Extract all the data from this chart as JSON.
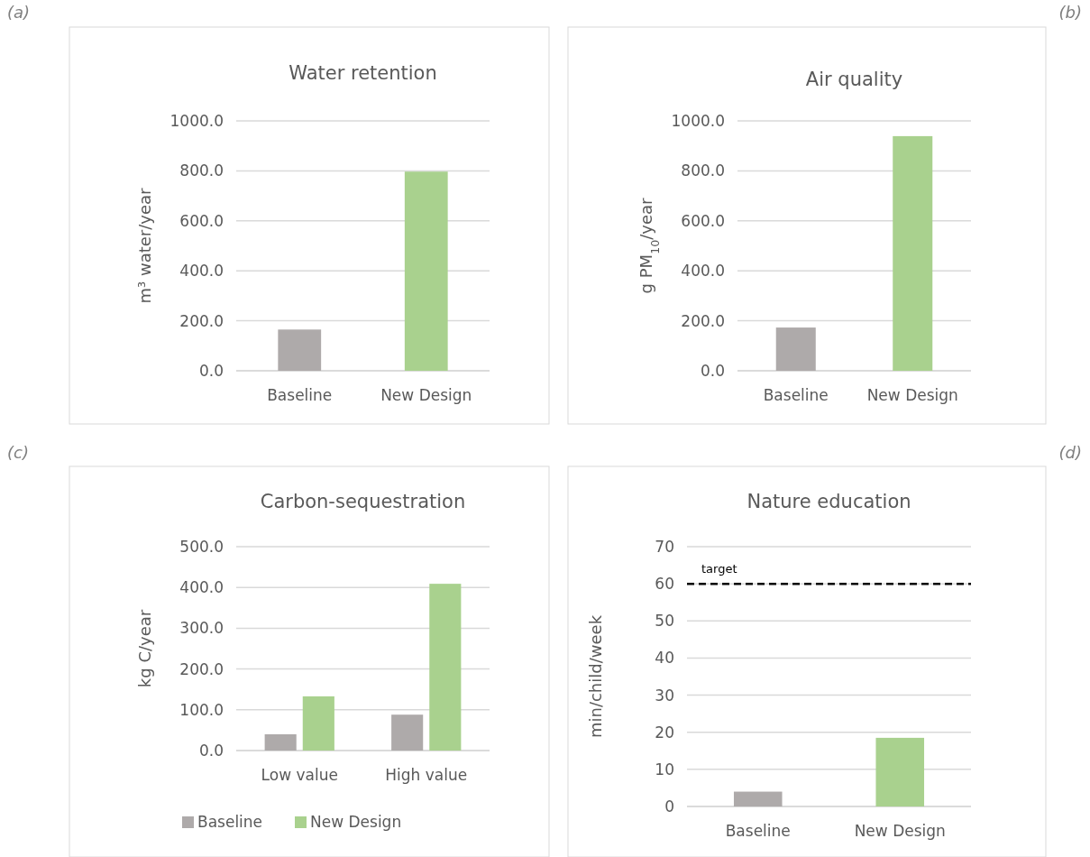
{
  "chart_data": [
    {
      "type": "bar",
      "title": "Water retention",
      "ylabel": "m³ water/year",
      "annotations": [
        "(a)"
      ],
      "categories": [
        "Baseline",
        "New Design"
      ],
      "values": [
        165,
        797
      ],
      "colors": [
        "#aeaaaa",
        "#a9d18e"
      ],
      "ylim": [
        0,
        1000
      ],
      "yticks": [
        {
          "value": 0,
          "label": "0.0"
        },
        {
          "value": 200,
          "label": "200.0"
        },
        {
          "value": 400,
          "label": "400.0"
        },
        {
          "value": 600,
          "label": "600.0"
        },
        {
          "value": 800,
          "label": "800.0"
        },
        {
          "value": 1000,
          "label": "1000.0"
        }
      ],
      "grid": "y"
    },
    {
      "type": "bar",
      "title": "Air quality",
      "ylabel": "g PM$_{10}$/year",
      "annotations": [
        "(b)"
      ],
      "categories": [
        "Baseline",
        "New Design"
      ],
      "values": [
        173,
        939
      ],
      "colors": [
        "#aeaaaa",
        "#a9d18e"
      ],
      "ylim": [
        0,
        1000
      ],
      "yticks": [
        {
          "value": 0,
          "label": "0.0"
        },
        {
          "value": 200,
          "label": "200.0"
        },
        {
          "value": 400,
          "label": "400.0"
        },
        {
          "value": 600,
          "label": "600.0"
        },
        {
          "value": 800,
          "label": "800.0"
        },
        {
          "value": 1000,
          "label": "1000.0"
        }
      ],
      "grid": "y"
    },
    {
      "type": "bar",
      "title": "Carbon-sequestration",
      "ylabel": "kg C/year",
      "annotations": [
        "(c)"
      ],
      "categories": [
        "Low value",
        "High value"
      ],
      "series": [
        {
          "name": "Baseline",
          "color": "#aeaaaa",
          "values": [
            40,
            88
          ]
        },
        {
          "name": "New Design",
          "color": "#a9d18e",
          "values": [
            133,
            409
          ]
        }
      ],
      "ylim": [
        0,
        500
      ],
      "yticks": [
        {
          "value": 0,
          "label": "0.0"
        },
        {
          "value": 100,
          "label": "100.0"
        },
        {
          "value": 200,
          "label": "200.0"
        },
        {
          "value": 300,
          "label": "300.0"
        },
        {
          "value": 400,
          "label": "400.0"
        },
        {
          "value": 500,
          "label": "500.0"
        }
      ],
      "grid": "y",
      "legend": "bottom"
    },
    {
      "type": "bar",
      "title": "Nature education",
      "ylabel": "min/child/week",
      "annotations": [
        "(d)"
      ],
      "categories": [
        "Baseline",
        "New Design"
      ],
      "values": [
        4,
        18.5
      ],
      "colors": [
        "#aeaaaa",
        "#a9d18e"
      ],
      "ylim": [
        0,
        70
      ],
      "yticks": [
        0,
        10,
        20,
        30,
        40,
        50,
        60,
        70
      ],
      "grid": "y",
      "ref_lines": [
        {
          "axis": "y",
          "value": 60,
          "label": "target",
          "color": "#000000",
          "line_style": "dashed"
        }
      ]
    }
  ]
}
